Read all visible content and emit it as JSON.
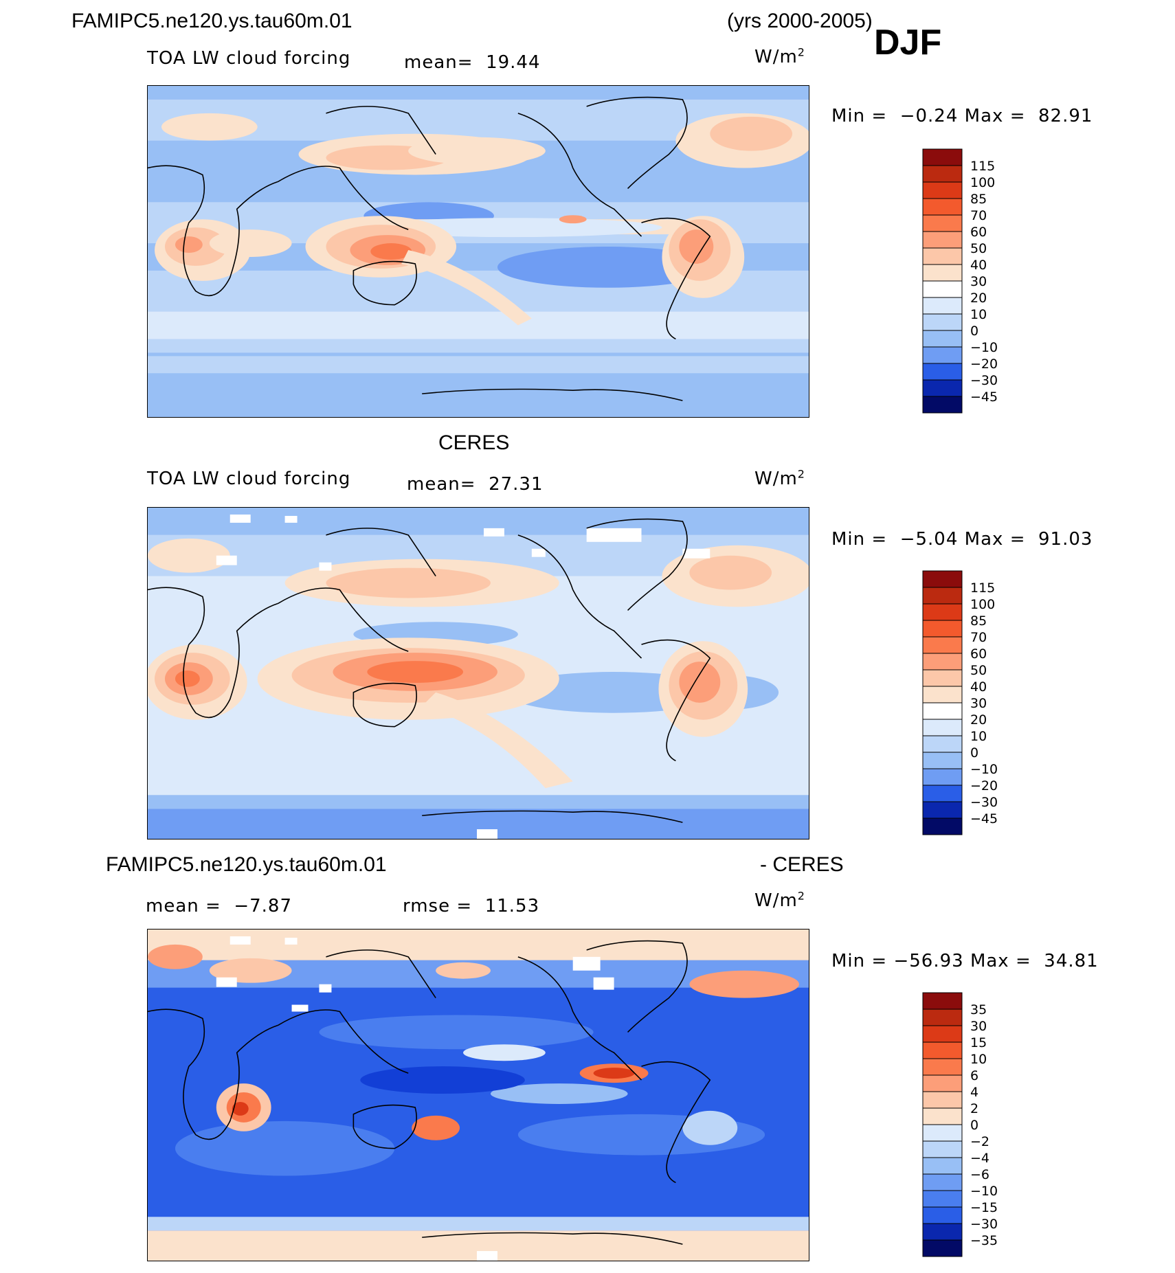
{
  "header": {
    "case_name": "FAMIPC5.ne120.ys.tau60m.01",
    "years": "(yrs 2000-2005)",
    "season": "DJF"
  },
  "colors": {
    "pos_ramp": [
      "#fbe2cc",
      "#fcc7a9",
      "#fc9e79",
      "#fa7a4c",
      "#f35a2d",
      "#dc3a17",
      "#bb2a10",
      "#8b0c0c"
    ],
    "neg_ramp": [
      "#dceafb",
      "#bcd6f8",
      "#98bff5",
      "#6f9df3",
      "#4a7eef",
      "#2a5ee7",
      "#123fd6",
      "#0a27ae",
      "#051682",
      "#020a66"
    ],
    "missing": "#ffffff",
    "coast": "#000000"
  },
  "panels": [
    {
      "id": "model",
      "title_left": "TOA LW cloud forcing",
      "mean_label": "mean=",
      "mean_value": "19.44",
      "units": "W/m",
      "units_exp": "2",
      "min_label": "Min =",
      "min_value": "−0.24",
      "max_label": "Max =",
      "max_value": "82.91"
    },
    {
      "id": "obs",
      "heading": "CERES",
      "title_left": "TOA LW cloud forcing",
      "mean_label": "mean=",
      "mean_value": "27.31",
      "units": "W/m",
      "units_exp": "2",
      "min_label": "Min =",
      "min_value": "−5.04",
      "max_label": "Max =",
      "max_value": "91.03"
    },
    {
      "id": "diff",
      "heading_left": "FAMIPC5.ne120.ys.tau60m.01",
      "heading_right": "- CERES",
      "mean_label": "mean =",
      "mean_value": "−7.87",
      "rmse_label": "rmse =",
      "rmse_value": "11.53",
      "units": "W/m",
      "units_exp": "2",
      "min_label": "Min =",
      "min_value": "−56.93",
      "max_label": "Max =",
      "max_value": "34.81"
    }
  ],
  "chart_data": [
    {
      "type": "heatmap",
      "title": "TOA LW cloud forcing",
      "units": "W/m2",
      "legend_placement": "right",
      "colorbar_levels": [
        "115",
        "100",
        "85",
        "70",
        "60",
        "50",
        "40",
        "30",
        "20",
        "10",
        "0",
        "−10",
        "−20",
        "−30",
        "−45"
      ],
      "colorbar_colors": [
        "#8b0c0c",
        "#bb2a10",
        "#dc3a17",
        "#f35a2d",
        "#fa7a4c",
        "#fc9e79",
        "#fcc7a9",
        "#fbe2cc",
        "#ffffff",
        "#dceafb",
        "#bcd6f8",
        "#98bff5",
        "#6f9df3",
        "#2a5ee7",
        "#0a27ae",
        "#020a66"
      ],
      "mean": 19.44,
      "min": -0.24,
      "max": 82.91
    },
    {
      "type": "heatmap",
      "title": "TOA LW cloud forcing",
      "units": "W/m2",
      "legend_placement": "right",
      "colorbar_levels": [
        "115",
        "100",
        "85",
        "70",
        "60",
        "50",
        "40",
        "30",
        "20",
        "10",
        "0",
        "−10",
        "−20",
        "−30",
        "−45"
      ],
      "colorbar_colors": [
        "#8b0c0c",
        "#bb2a10",
        "#dc3a17",
        "#f35a2d",
        "#fa7a4c",
        "#fc9e79",
        "#fcc7a9",
        "#fbe2cc",
        "#ffffff",
        "#dceafb",
        "#bcd6f8",
        "#98bff5",
        "#6f9df3",
        "#2a5ee7",
        "#0a27ae",
        "#020a66"
      ],
      "mean": 27.31,
      "min": -5.04,
      "max": 91.03
    },
    {
      "type": "heatmap",
      "title": "FAMIPC5.ne120.ys.tau60m.01 - CERES",
      "units": "W/m2",
      "legend_placement": "right",
      "colorbar_levels": [
        "35",
        "30",
        "15",
        "10",
        "6",
        "4",
        "2",
        "0",
        "−2",
        "−4",
        "−6",
        "−10",
        "−15",
        "−30",
        "−35"
      ],
      "colorbar_colors": [
        "#8b0c0c",
        "#bb2a10",
        "#dc3a17",
        "#f35a2d",
        "#fa7a4c",
        "#fc9e79",
        "#fcc7a9",
        "#fbe2cc",
        "#dceafb",
        "#bcd6f8",
        "#98bff5",
        "#6f9df3",
        "#4a7eef",
        "#2a5ee7",
        "#0a27ae",
        "#020a66"
      ],
      "mean": -7.87,
      "rmse": 11.53,
      "min": -56.93,
      "max": 34.81
    }
  ]
}
